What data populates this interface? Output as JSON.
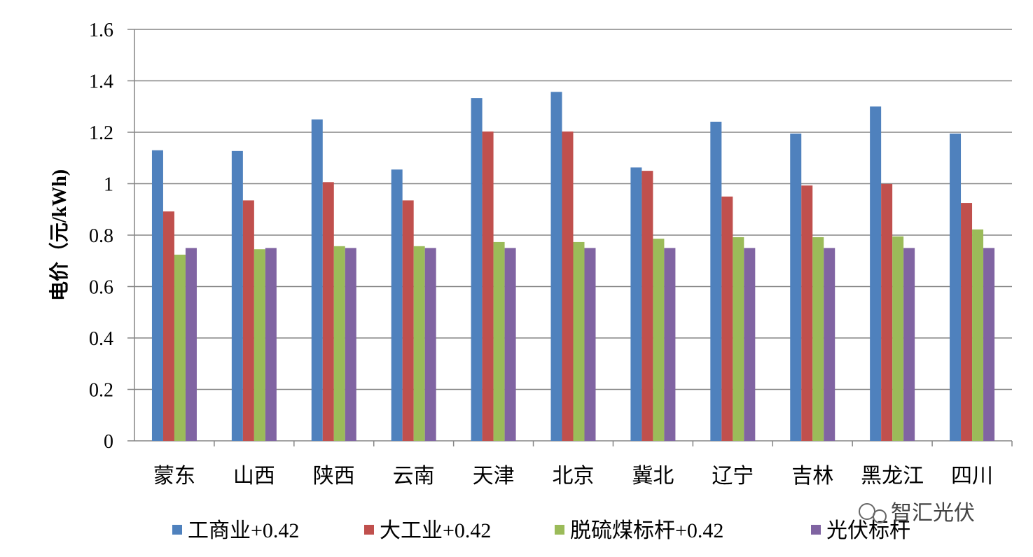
{
  "chart_data": {
    "type": "bar",
    "title": "",
    "xlabel": "",
    "ylabel": "电价（元/kWh)",
    "ylim": [
      0,
      1.6
    ],
    "yticks": [
      "0",
      "0.2",
      "0.4",
      "0.6",
      "0.8",
      "1",
      "1.2",
      "1.4",
      "1.6"
    ],
    "grid": true,
    "legend_position": "bottom",
    "categories": [
      "蒙东",
      "山西",
      "陕西",
      "云南",
      "天津",
      "北京",
      "冀北",
      "辽宁",
      "吉林",
      "黑龙江",
      "四川"
    ],
    "series": [
      {
        "name": "工商业+0.42",
        "color": "#4F81BD",
        "values": [
          1.13,
          1.127,
          1.25,
          1.055,
          1.333,
          1.357,
          1.063,
          1.241,
          1.195,
          1.3,
          1.195
        ]
      },
      {
        "name": "大工业+0.42",
        "color": "#C0504D",
        "values": [
          0.892,
          0.935,
          1.006,
          0.935,
          1.203,
          1.203,
          1.05,
          0.95,
          0.993,
          0.999,
          0.925
        ]
      },
      {
        "name": "脱硫煤标杆+0.42",
        "color": "#9BBB59",
        "values": [
          0.724,
          0.745,
          0.757,
          0.757,
          0.773,
          0.773,
          0.786,
          0.792,
          0.792,
          0.795,
          0.822
        ]
      },
      {
        "name": "光伏标杆",
        "color": "#8064A2",
        "values": [
          0.75,
          0.75,
          0.75,
          0.75,
          0.75,
          0.75,
          0.75,
          0.75,
          0.75,
          0.75,
          0.75
        ]
      }
    ]
  },
  "watermark": {
    "text": "智汇光伏",
    "icon": "wechat-icon"
  }
}
